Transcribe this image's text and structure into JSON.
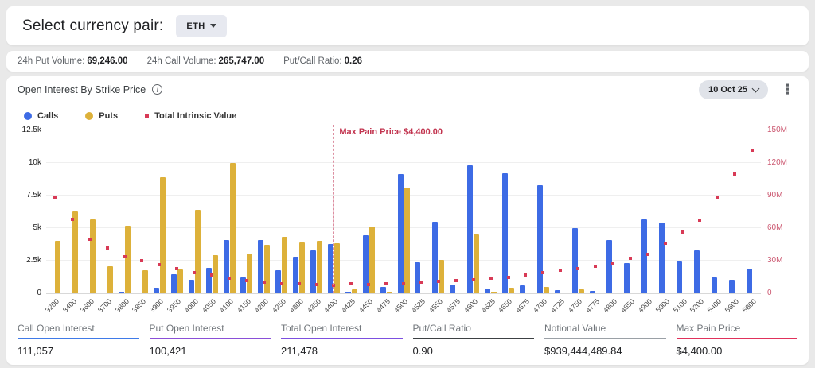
{
  "currency_bar": {
    "label": "Select currency pair:",
    "selected_pair": "ETH"
  },
  "stats_bar": {
    "items": [
      {
        "label": "24h Put Volume:",
        "value": "69,246.00"
      },
      {
        "label": "24h Call Volume:",
        "value": "265,747.00"
      },
      {
        "label": "Put/Call Ratio:",
        "value": "0.26"
      }
    ]
  },
  "panel": {
    "title": "Open Interest By Strike Price",
    "info_icon": "info-circle",
    "date_selector": "10 Oct 25",
    "kebab_icon": "vertical-three-dots",
    "legend": [
      {
        "label": "Calls",
        "shape": "circle",
        "color": "#3d6be5"
      },
      {
        "label": "Puts",
        "shape": "circle",
        "color": "#ddb13a"
      },
      {
        "label": "Total Intrinsic Value",
        "shape": "square",
        "color": "#d83a56"
      }
    ]
  },
  "chart_data": {
    "type": "bar",
    "title": "Open Interest By Strike Price",
    "categories": [
      "3200",
      "3400",
      "3600",
      "3700",
      "3800",
      "3850",
      "3900",
      "3950",
      "4000",
      "4050",
      "4100",
      "4150",
      "4200",
      "4250",
      "4300",
      "4350",
      "4400",
      "4425",
      "4450",
      "4475",
      "4500",
      "4525",
      "4550",
      "4575",
      "4600",
      "4625",
      "4650",
      "4675",
      "4700",
      "4725",
      "4750",
      "4775",
      "4800",
      "4850",
      "4900",
      "5000",
      "5100",
      "5200",
      "5400",
      "5600",
      "5800"
    ],
    "series": [
      {
        "name": "Calls",
        "type": "bar",
        "axis": "left",
        "color": "#3d6be5",
        "values": [
          0,
          0,
          0,
          0,
          150,
          0,
          450,
          1450,
          1050,
          1950,
          4100,
          1250,
          4100,
          1750,
          2800,
          3300,
          3800,
          150,
          4450,
          500,
          9150,
          2350,
          5500,
          700,
          9800,
          350,
          9200,
          600,
          8300,
          250,
          5000,
          200,
          4100,
          2300,
          5700,
          5400,
          2450,
          3300,
          1200,
          1050,
          1900
        ]
      },
      {
        "name": "Puts",
        "type": "bar",
        "axis": "left",
        "color": "#ddb13a",
        "values": [
          4000,
          6300,
          5700,
          2100,
          5200,
          1750,
          8900,
          1850,
          6400,
          2900,
          10000,
          3050,
          3750,
          4350,
          3900,
          4000,
          3850,
          300,
          5100,
          150,
          8100,
          0,
          2550,
          0,
          4500,
          100,
          400,
          0,
          500,
          0,
          300,
          0,
          0,
          0,
          0,
          0,
          0,
          0,
          0,
          0,
          0
        ]
      },
      {
        "name": "Total Intrinsic Value",
        "type": "scatter",
        "axis": "right",
        "color": "#d83a56",
        "unit": "M",
        "values": [
          88,
          68,
          50,
          42,
          34,
          30,
          26,
          23,
          19,
          17,
          14,
          12,
          10.5,
          9,
          8.5,
          8,
          7.5,
          8.5,
          8,
          9,
          8.5,
          10,
          11,
          12,
          12.7,
          14,
          15,
          16.5,
          19,
          21,
          22.5,
          25,
          27,
          32,
          36,
          46,
          56,
          67,
          88,
          110,
          132
        ]
      }
    ],
    "left_axis": {
      "ticks": [
        "0",
        "2.5k",
        "5k",
        "7.5k",
        "10k",
        "12.5k"
      ],
      "max": 12500
    },
    "right_axis": {
      "ticks": [
        "0",
        "30M",
        "60M",
        "90M",
        "120M",
        "150M"
      ],
      "max": 150
    },
    "grid": true,
    "legend_position": "top-left",
    "annotation": {
      "label": "Max Pain Price $4,400.00",
      "strike": "4400",
      "line_style": "dashed"
    }
  },
  "footer_stats": [
    {
      "label": "Call Open Interest",
      "value": "111,057",
      "underline_color": "#3f7ae8"
    },
    {
      "label": "Put Open Interest",
      "value": "100,421",
      "underline_color": "#8a4fd8"
    },
    {
      "label": "Total Open Interest",
      "value": "211,478",
      "underline_color": "#7c4fe0"
    },
    {
      "label": "Put/Call Ratio",
      "value": "0.90",
      "underline_color": "#3c4043"
    },
    {
      "label": "Notional Value",
      "value": "$939,444,489.84",
      "underline_color": "#9aa0a6"
    },
    {
      "label": "Max Pain Price",
      "value": "$4,400.00",
      "underline_color": "#e0315b"
    }
  ]
}
